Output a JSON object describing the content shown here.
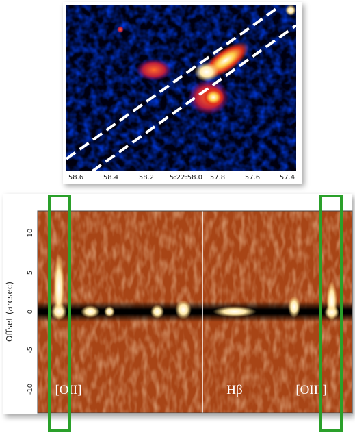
{
  "image_panel": {
    "x_ticks": [
      "58.6",
      "58.4",
      "58.2",
      "5:22:58.0",
      "57.8",
      "57.6",
      "57.4"
    ]
  },
  "spectrum_panel": {
    "y_label": "Offset (arcsec)",
    "y_ticks": [
      "10",
      "5",
      "0",
      "-5",
      "-10"
    ],
    "line_labels": [
      "[OII]",
      "Hβ",
      "[OIII]"
    ]
  }
}
